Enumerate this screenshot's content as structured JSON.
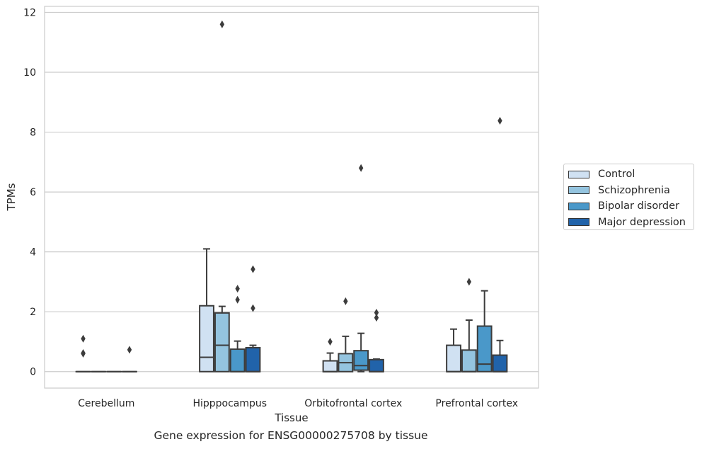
{
  "chart_data": {
    "type": "box",
    "title": "",
    "caption": "Gene expression for ENSG00000275708 by tissue",
    "xlabel": "Tissue",
    "ylabel": "TPMs",
    "ylim": [
      -0.55,
      12.2
    ],
    "yticks": [
      0,
      2,
      4,
      6,
      8,
      10,
      12
    ],
    "grid": "horizontal",
    "legend_position": "right",
    "categories": [
      "Cerebellum",
      "Hipppocampus",
      "Orbitofrontal cortex",
      "Prefrontal cortex"
    ],
    "series": [
      {
        "name": "Control",
        "color": "#d0e1f2",
        "boxes": [
          {
            "q1": 0,
            "median": 0,
            "q3": 0,
            "whisker_low": 0,
            "whisker_high": 0,
            "outliers": [
              0.6,
              0.62,
              1.1
            ]
          },
          {
            "q1": 0,
            "median": 0.48,
            "q3": 2.2,
            "whisker_low": 0,
            "whisker_high": 4.1,
            "outliers": []
          },
          {
            "q1": 0,
            "median": 0,
            "q3": 0.36,
            "whisker_low": 0,
            "whisker_high": 0.62,
            "outliers": [
              1.0
            ]
          },
          {
            "q1": 0,
            "median": 0,
            "q3": 0.88,
            "whisker_low": 0,
            "whisker_high": 1.42,
            "outliers": []
          }
        ]
      },
      {
        "name": "Schizophrenia",
        "color": "#94c4df",
        "boxes": [
          {
            "q1": 0,
            "median": 0,
            "q3": 0,
            "whisker_low": 0,
            "whisker_high": 0,
            "outliers": []
          },
          {
            "q1": 0,
            "median": 0.88,
            "q3": 1.96,
            "whisker_low": 0,
            "whisker_high": 2.18,
            "outliers": [
              11.6
            ]
          },
          {
            "q1": 0,
            "median": 0.3,
            "q3": 0.6,
            "whisker_low": 0,
            "whisker_high": 1.18,
            "outliers": [
              2.35
            ]
          },
          {
            "q1": 0,
            "median": 0,
            "q3": 0.72,
            "whisker_low": 0,
            "whisker_high": 1.72,
            "outliers": [
              3.0
            ]
          }
        ]
      },
      {
        "name": "Bipolar disorder",
        "color": "#4a98c9",
        "boxes": [
          {
            "q1": 0,
            "median": 0,
            "q3": 0,
            "whisker_low": 0,
            "whisker_high": 0,
            "outliers": []
          },
          {
            "q1": 0,
            "median": 0,
            "q3": 0.75,
            "whisker_low": 0,
            "whisker_high": 1.02,
            "outliers": [
              2.4,
              2.77
            ]
          },
          {
            "q1": 0.05,
            "median": 0.2,
            "q3": 0.7,
            "whisker_low": 0,
            "whisker_high": 1.28,
            "outliers": [
              6.8
            ]
          },
          {
            "q1": 0,
            "median": 0.25,
            "q3": 1.52,
            "whisker_low": 0,
            "whisker_high": 2.7,
            "outliers": []
          }
        ]
      },
      {
        "name": "Major depression",
        "color": "#2163aa",
        "boxes": [
          {
            "q1": 0,
            "median": 0,
            "q3": 0,
            "whisker_low": 0,
            "whisker_high": 0,
            "outliers": [
              0.73
            ]
          },
          {
            "q1": 0,
            "median": 0,
            "q3": 0.8,
            "whisker_low": 0,
            "whisker_high": 0.88,
            "outliers": [
              2.12,
              3.42
            ]
          },
          {
            "q1": 0,
            "median": 0,
            "q3": 0.4,
            "whisker_low": 0,
            "whisker_high": 0.42,
            "outliers": [
              1.8,
              1.97
            ]
          },
          {
            "q1": 0,
            "median": 0,
            "q3": 0.55,
            "whisker_low": 0,
            "whisker_high": 1.04,
            "outliers": [
              8.38
            ]
          }
        ]
      }
    ]
  }
}
